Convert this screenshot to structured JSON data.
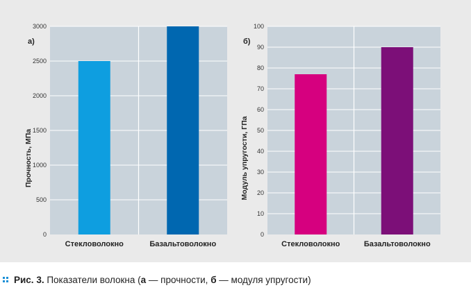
{
  "chart_data": [
    {
      "type": "bar",
      "panel_label": "а)",
      "categories": [
        "Стекловолокно",
        "Базальтоволокно"
      ],
      "values": [
        2500,
        3000
      ],
      "colors": [
        "#0e9ee0",
        "#0067b0"
      ],
      "ylabel": "Прочность, МПа",
      "ylim": [
        0,
        3000
      ],
      "yticks": [
        0,
        500,
        1000,
        1500,
        2000,
        2500,
        3000
      ],
      "grid": true
    },
    {
      "type": "bar",
      "panel_label": "б)",
      "categories": [
        "Стекловолокно",
        "Базальтоволокно"
      ],
      "values": [
        77,
        90
      ],
      "colors": [
        "#d6007f",
        "#7c0f78"
      ],
      "ylabel": "Модуль упругости, ГПа",
      "ylim": [
        0,
        100
      ],
      "yticks": [
        0,
        10,
        20,
        30,
        40,
        50,
        60,
        70,
        80,
        90,
        100
      ],
      "grid": true
    }
  ],
  "style": {
    "plot_bg": "#c9d3db",
    "grid_color": "#ffffff",
    "panel_bg": "#eaeaea"
  },
  "caption": {
    "prefix": "Рис. 3.",
    "text_1": " Показатели волокна (",
    "bold_a": "а",
    "text_2": " — прочности, ",
    "bold_b": "б",
    "text_3": " — модуля упругости)"
  }
}
